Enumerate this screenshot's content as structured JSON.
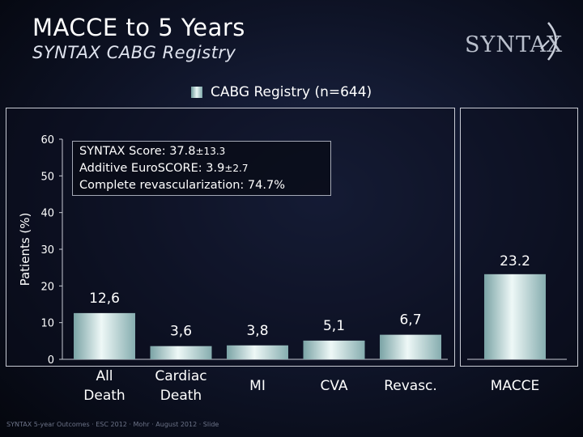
{
  "title": "MACCE to 5 Years",
  "subtitle": "SYNTAX CABG Registry",
  "logo_text": "SYNTAX",
  "legend": {
    "label": "CABG Registry (n=644)"
  },
  "info": {
    "line1": "SYNTAX Score: 37.8",
    "line1_sd": "±13.3",
    "line2": "Additive EuroSCORE: 3.9",
    "line2_sd": "±2.7",
    "line3": "Complete revascularization: 74.7%"
  },
  "footer": "SYNTAX 5-year Outcomes · ESC 2012 · Mohr · August 2012 · Slide",
  "colors": {
    "bar_light": "#eef8f7",
    "bar_dark": "#7aa3a5",
    "accent": "#c7cad3"
  },
  "chart_data": [
    {
      "type": "bar",
      "title": "",
      "xlabel": "",
      "ylabel": "Patients (%)",
      "ylim": [
        0,
        60
      ],
      "yticks": [
        0,
        10,
        20,
        30,
        40,
        50,
        60
      ],
      "grid": false,
      "legend_position": "top",
      "categories": [
        [
          "All",
          "Death"
        ],
        [
          "Cardiac",
          "Death"
        ],
        [
          "MI"
        ],
        [
          "CVA"
        ],
        [
          "Revasc."
        ]
      ],
      "series": [
        {
          "name": "CABG Registry (n=644)",
          "values": [
            12.6,
            3.6,
            3.8,
            5.1,
            6.7
          ]
        }
      ],
      "data_labels": [
        "12,6",
        "3,6",
        "3,8",
        "5,1",
        "6,7"
      ]
    },
    {
      "type": "bar",
      "ylim": [
        0,
        60
      ],
      "categories": [
        "MACCE"
      ],
      "series": [
        {
          "name": "CABG Registry (n=644)",
          "values": [
            23.2
          ]
        }
      ],
      "data_labels": [
        "23.2"
      ]
    }
  ]
}
